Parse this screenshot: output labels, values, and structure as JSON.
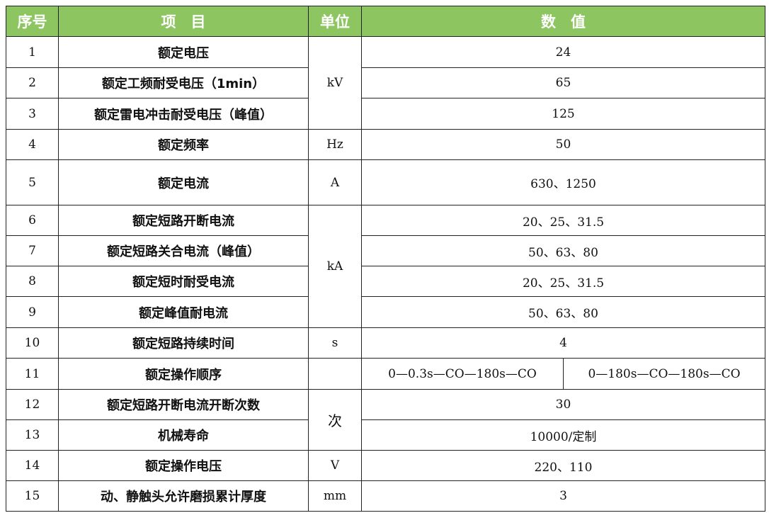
{
  "colors": {
    "header_bg": "#8dc661",
    "header_text": "#ffffff",
    "border": "#222222"
  },
  "headers": [
    "序号",
    "项　目",
    "单位",
    "数　值"
  ],
  "rows": [
    {
      "no": "1",
      "item": "额定电压",
      "unit": "kV",
      "value": "24"
    },
    {
      "no": "2",
      "item": "额定工频耐受电压（1min）",
      "value": "65"
    },
    {
      "no": "3",
      "item": "额定雷电冲击耐受电压（峰值）",
      "value": "125"
    },
    {
      "no": "4",
      "item": "额定频率",
      "unit": "Hz",
      "value": "50"
    },
    {
      "no": "5",
      "item": "额定电流",
      "unit": "A",
      "value": "630、1250"
    },
    {
      "no": "6",
      "item": "额定短路开断电流",
      "unit": "kA",
      "value": "20、25、31.5"
    },
    {
      "no": "7",
      "item": "额定短路关合电流（峰值）",
      "value": "50、63、80"
    },
    {
      "no": "8",
      "item": "额定短时耐受电流",
      "value": "20、25、31.5"
    },
    {
      "no": "9",
      "item": "额定峰值耐电流",
      "value": "50、63、80"
    },
    {
      "no": "10",
      "item": "额定短路持续时间",
      "unit": "s",
      "value": "4"
    },
    {
      "no": "11",
      "item": "额定操作顺序",
      "unit": "",
      "value_a": "0—0.3s—CO—180s—CO",
      "value_b": "0—180s—CO—180s—CO"
    },
    {
      "no": "12",
      "item": "额定短路开断电流开断次数",
      "unit": "次",
      "value": "30"
    },
    {
      "no": "13",
      "item": "机械寿命",
      "value": "10000/定制"
    },
    {
      "no": "14",
      "item": "额定操作电压",
      "unit": "V",
      "value": "220、110"
    },
    {
      "no": "15",
      "item": "动、静触头允许磨损累计厚度",
      "unit": "mm",
      "value": "3"
    }
  ]
}
